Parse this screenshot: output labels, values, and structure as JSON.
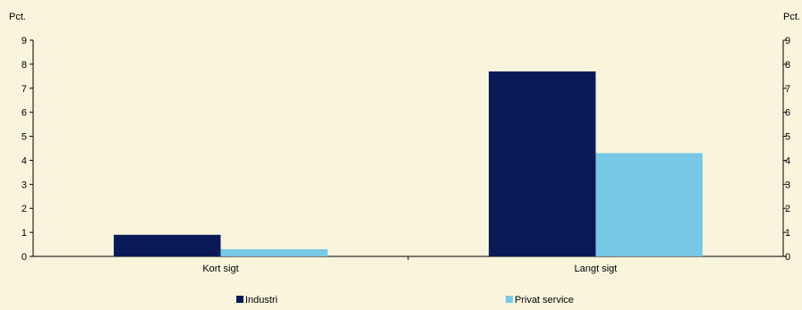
{
  "chart_data": {
    "type": "bar",
    "y_unit_left": "Pct.",
    "y_unit_right": "Pct.",
    "categories": [
      "Kort sigt",
      "Langt sigt"
    ],
    "series": [
      {
        "name": "Industri",
        "values": [
          0.9,
          7.7
        ],
        "color": "#0a1a57"
      },
      {
        "name": "Privat service",
        "values": [
          0.3,
          4.3
        ],
        "color": "#77c8e6"
      }
    ],
    "ylim": [
      0,
      9
    ],
    "yticks": [
      "0",
      "1",
      "2",
      "3",
      "4",
      "5",
      "6",
      "7",
      "8",
      "9"
    ],
    "grid": false,
    "legend_position": "bottom",
    "background": "#f8f5dc"
  }
}
